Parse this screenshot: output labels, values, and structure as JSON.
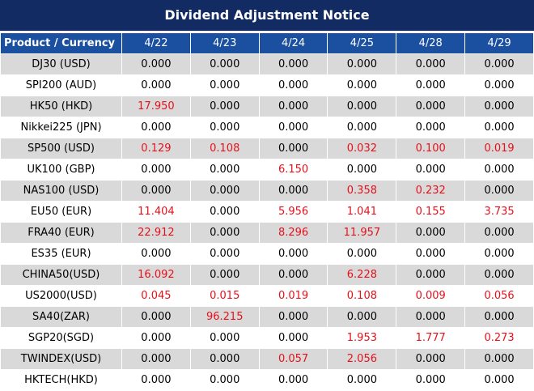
{
  "header": {
    "title": "Dividend Adjustment Notice"
  },
  "table": {
    "columns": [
      "Product / Currency",
      "4/22",
      "4/23",
      "4/24",
      "4/25",
      "4/28",
      "4/29"
    ],
    "rows": [
      [
        "DJ30 (USD)",
        "0.000",
        "0.000",
        "0.000",
        "0.000",
        "0.000",
        "0.000"
      ],
      [
        "SPI200 (AUD)",
        "0.000",
        "0.000",
        "0.000",
        "0.000",
        "0.000",
        "0.000"
      ],
      [
        "HK50 (HKD)",
        "17.950",
        "0.000",
        "0.000",
        "0.000",
        "0.000",
        "0.000"
      ],
      [
        "Nikkei225 (JPN)",
        "0.000",
        "0.000",
        "0.000",
        "0.000",
        "0.000",
        "0.000"
      ],
      [
        "SP500 (USD)",
        "0.129",
        "0.108",
        "0.000",
        "0.032",
        "0.100",
        "0.019"
      ],
      [
        "UK100 (GBP)",
        "0.000",
        "0.000",
        "6.150",
        "0.000",
        "0.000",
        "0.000"
      ],
      [
        "NAS100 (USD)",
        "0.000",
        "0.000",
        "0.000",
        "0.358",
        "0.232",
        "0.000"
      ],
      [
        "EU50 (EUR)",
        "11.404",
        "0.000",
        "5.956",
        "1.041",
        "0.155",
        "3.735"
      ],
      [
        "FRA40 (EUR)",
        "22.912",
        "0.000",
        "8.296",
        "11.957",
        "0.000",
        "0.000"
      ],
      [
        "ES35 (EUR)",
        "0.000",
        "0.000",
        "0.000",
        "0.000",
        "0.000",
        "0.000"
      ],
      [
        "CHINA50(USD)",
        "16.092",
        "0.000",
        "0.000",
        "6.228",
        "0.000",
        "0.000"
      ],
      [
        "US2000(USD)",
        "0.045",
        "0.015",
        "0.019",
        "0.108",
        "0.009",
        "0.056"
      ],
      [
        "SA40(ZAR)",
        "0.000",
        "96.215",
        "0.000",
        "0.000",
        "0.000",
        "0.000"
      ],
      [
        "SGP20(SGD)",
        "0.000",
        "0.000",
        "0.000",
        "1.953",
        "1.777",
        "0.273"
      ],
      [
        "TWINDEX(USD)",
        "0.000",
        "0.000",
        "0.057",
        "2.056",
        "0.000",
        "0.000"
      ],
      [
        "HKTECH(HKD)",
        "0.000",
        "0.000",
        "0.000",
        "0.000",
        "0.000",
        "0.000"
      ]
    ]
  }
}
